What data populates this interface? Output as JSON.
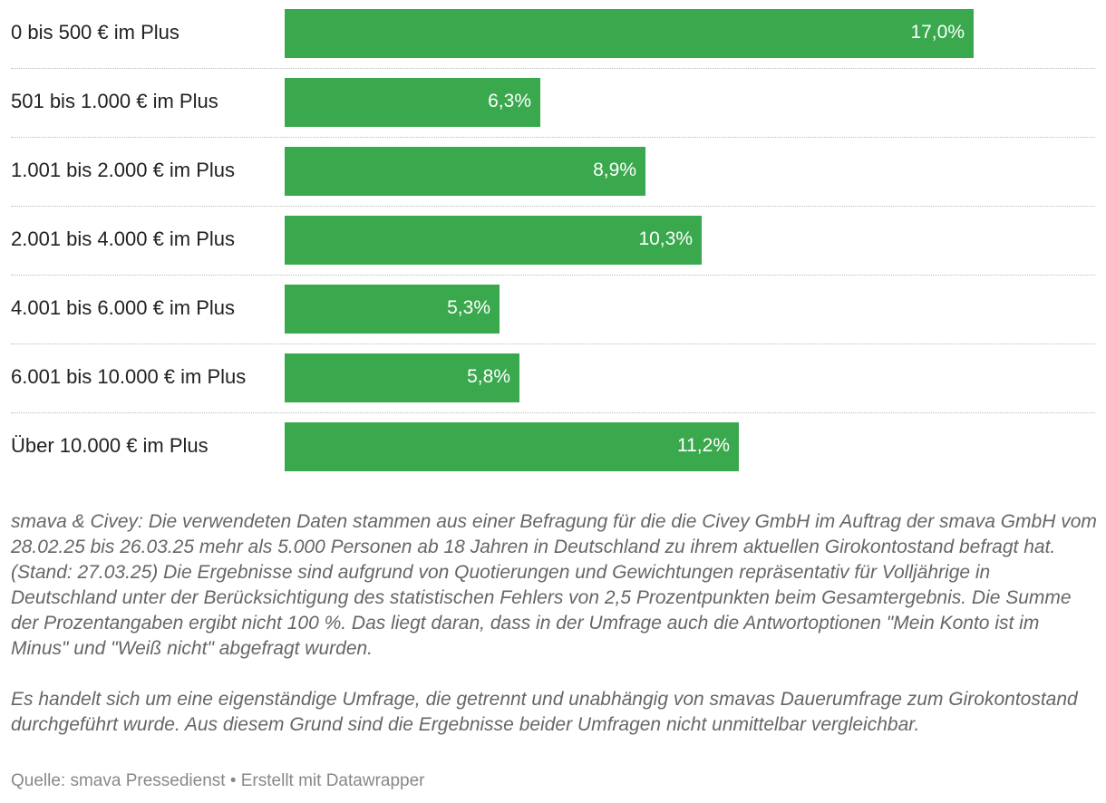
{
  "chart_data": {
    "type": "bar",
    "orientation": "horizontal",
    "categories": [
      "0 bis 500 € im Plus",
      "501 bis 1.000 € im Plus",
      "1.001 bis 2.000 € im Plus",
      "2.001 bis 4.000 € im Plus",
      "4.001 bis 6.000 € im Plus",
      "6.001 bis 10.000 € im Plus",
      "Über 10.000 € im Plus"
    ],
    "values": [
      17.0,
      6.3,
      8.9,
      10.3,
      5.3,
      5.8,
      11.2
    ],
    "value_labels": [
      "17,0%",
      "6,3%",
      "8,9%",
      "10,3%",
      "5,3%",
      "5,8%",
      "11,2%"
    ],
    "unit": "%",
    "xlim": [
      0,
      17.0
    ],
    "bar_color": "#3aa84d",
    "grid": false,
    "legend": "none"
  },
  "notes": {
    "paragraph_1": "smava & Civey: Die verwendeten Daten stammen aus einer Befragung für die die Civey GmbH im Auftrag der smava GmbH vom 28.02.25 bis 26.03.25 mehr als 5.000 Personen ab 18 Jahren in Deutschland zu ihrem aktuellen Girokontostand befragt hat. (Stand: 27.03.25) Die Ergebnisse sind aufgrund von Quotierungen und Gewichtungen repräsentativ für Volljährige in Deutschland unter der Berücksichtigung des statistischen Fehlers von 2,5 Prozentpunkten beim Gesamtergebnis. Die Summe der Prozentangaben ergibt nicht 100 %. Das liegt daran, dass in der Umfrage auch die Antwortoptionen \"Mein Konto ist im Minus\" und \"Weiß nicht\" abgefragt wurden.",
    "paragraph_2": "Es handelt sich um eine eigenständige Umfrage, die getrennt und unabhängig von smavas Dauerumfrage zum Girokontostand durchgeführt wurde. Aus diesem Grund sind die Ergebnisse beider Umfragen nicht unmittelbar vergleichbar."
  },
  "footer": {
    "text": "Quelle: smava Pressedienst • Erstellt mit Datawrapper"
  }
}
